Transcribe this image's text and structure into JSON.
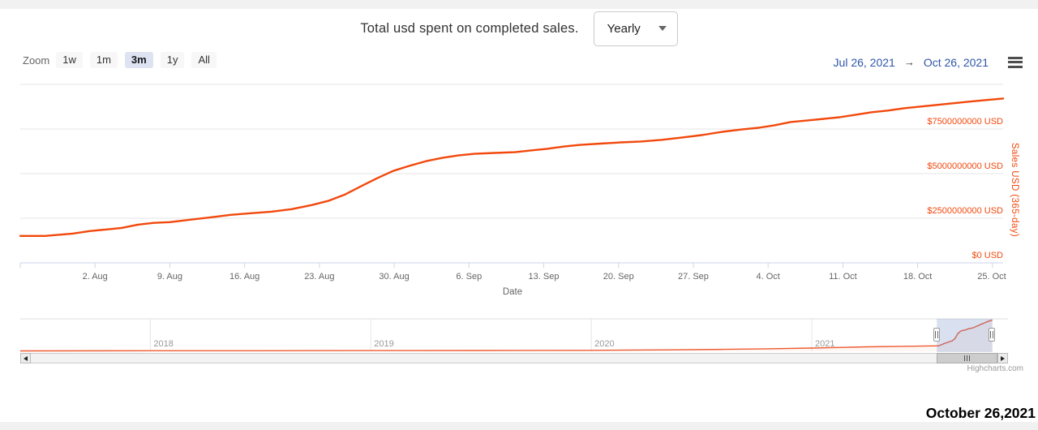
{
  "colors": {
    "accent": "#f2480c",
    "nav_line": "#ef5b31",
    "range_blue": "#2f56a8",
    "mask": "rgba(102,133,194,0.25)",
    "grid": "#e6e6e6",
    "axis_line": "#ccd6eb"
  },
  "icons": {
    "dropdown_caret": "chevron-down",
    "menu": "hamburger-menu",
    "scroll_left": "triangle-left",
    "scroll_right": "triangle-right"
  },
  "header": {
    "title": "Total usd spent on completed sales.",
    "period_select": {
      "value": "Yearly"
    }
  },
  "toolbar": {
    "zoom_label": "Zoom",
    "buttons": [
      {
        "label": "1w",
        "selected": false
      },
      {
        "label": "1m",
        "selected": false
      },
      {
        "label": "3m",
        "selected": true
      },
      {
        "label": "1y",
        "selected": false
      },
      {
        "label": "All",
        "selected": false
      }
    ],
    "range": {
      "from": "Jul 26, 2021",
      "arrow": "→",
      "to": "Oct 26, 2021"
    }
  },
  "chart_data": {
    "type": "line",
    "xlabel": "Date",
    "ylabel": "Sales USD (365-day)",
    "x_unit": "days since 2021-07-26",
    "y_unit": "USD (values stored in billions)",
    "xlim_days": [
      0,
      92
    ],
    "ylim": [
      0,
      10000000000
    ],
    "grid": true,
    "x_ticks": [
      {
        "d": 0,
        "label": ""
      },
      {
        "d": 7,
        "label": "2. Aug"
      },
      {
        "d": 14,
        "label": "9. Aug"
      },
      {
        "d": 21,
        "label": "16. Aug"
      },
      {
        "d": 28,
        "label": "23. Aug"
      },
      {
        "d": 35,
        "label": "30. Aug"
      },
      {
        "d": 42,
        "label": "6. Sep"
      },
      {
        "d": 49,
        "label": "13. Sep"
      },
      {
        "d": 56,
        "label": "20. Sep"
      },
      {
        "d": 63,
        "label": "27. Sep"
      },
      {
        "d": 70,
        "label": "4. Oct"
      },
      {
        "d": 77,
        "label": "11. Oct"
      },
      {
        "d": 84,
        "label": "18. Oct"
      },
      {
        "d": 91,
        "label": "25. Oct"
      }
    ],
    "y_ticks": [
      {
        "value": 0,
        "label": "$0 USD"
      },
      {
        "value": 2.5,
        "label": "$2500000000 USD"
      },
      {
        "value": 5,
        "label": "$5000000000 USD"
      },
      {
        "value": 7.5,
        "label": "$7500000000 USD"
      },
      {
        "value": 10,
        "label": ""
      }
    ],
    "series": [
      {
        "name": "Sales USD (365-day)",
        "points": [
          [
            0,
            1.51
          ],
          [
            2.3,
            1.51
          ],
          [
            4.9,
            1.64
          ],
          [
            6.5,
            1.78
          ],
          [
            8,
            1.87
          ],
          [
            9.5,
            1.96
          ],
          [
            11,
            2.14
          ],
          [
            12.5,
            2.24
          ],
          [
            14,
            2.28
          ],
          [
            15.9,
            2.42
          ],
          [
            17.8,
            2.55
          ],
          [
            19.7,
            2.69
          ],
          [
            21.6,
            2.78
          ],
          [
            23.5,
            2.87
          ],
          [
            25.4,
            3.01
          ],
          [
            27.3,
            3.24
          ],
          [
            28.8,
            3.47
          ],
          [
            30.4,
            3.83
          ],
          [
            31.9,
            4.29
          ],
          [
            33.4,
            4.74
          ],
          [
            34.9,
            5.15
          ],
          [
            36.4,
            5.43
          ],
          [
            38,
            5.7
          ],
          [
            39.5,
            5.88
          ],
          [
            41,
            6.02
          ],
          [
            42.5,
            6.11
          ],
          [
            44.4,
            6.16
          ],
          [
            46.3,
            6.2
          ],
          [
            47.8,
            6.3
          ],
          [
            49.3,
            6.39
          ],
          [
            50.9,
            6.52
          ],
          [
            52.4,
            6.61
          ],
          [
            54.3,
            6.68
          ],
          [
            56.2,
            6.75
          ],
          [
            58.1,
            6.8
          ],
          [
            60,
            6.89
          ],
          [
            61.9,
            7.02
          ],
          [
            63.8,
            7.16
          ],
          [
            65.7,
            7.34
          ],
          [
            67.6,
            7.48
          ],
          [
            69.1,
            7.57
          ],
          [
            70.6,
            7.71
          ],
          [
            72.1,
            7.89
          ],
          [
            73.7,
            7.98
          ],
          [
            75.2,
            8.07
          ],
          [
            76.7,
            8.16
          ],
          [
            78.2,
            8.3
          ],
          [
            79.7,
            8.44
          ],
          [
            81.2,
            8.53
          ],
          [
            82.8,
            8.67
          ],
          [
            84.3,
            8.76
          ],
          [
            85.8,
            8.85
          ],
          [
            87.3,
            8.94
          ],
          [
            88.8,
            9.03
          ],
          [
            90.3,
            9.12
          ],
          [
            92,
            9.21
          ]
        ]
      }
    ]
  },
  "navigator": {
    "year_ticks": [
      {
        "year": 2018,
        "label": "2018"
      },
      {
        "year": 2019,
        "label": "2019"
      },
      {
        "year": 2020,
        "label": "2020"
      },
      {
        "year": 2021,
        "label": "2021"
      }
    ],
    "series_history": [
      [
        2017.41,
        0.01
      ],
      [
        2018,
        0.04
      ],
      [
        2018.5,
        0.06
      ],
      [
        2019,
        0.09
      ],
      [
        2019.5,
        0.12
      ],
      [
        2020,
        0.18
      ],
      [
        2020.3,
        0.28
      ],
      [
        2020.6,
        0.45
      ],
      [
        2020.8,
        0.62
      ],
      [
        2021,
        0.85
      ],
      [
        2021.1,
        1.0
      ],
      [
        2021.25,
        1.2
      ],
      [
        2021.4,
        1.35
      ]
    ],
    "selection": {
      "from_day": 0,
      "to_day": 92
    }
  },
  "credits": "Highcharts.com",
  "footer": {
    "date_label": "October 26,2021"
  }
}
